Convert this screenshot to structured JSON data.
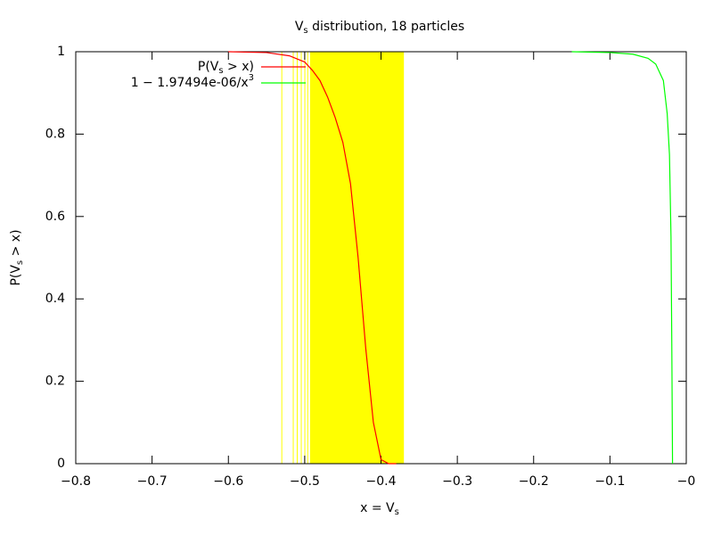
{
  "chart_data": {
    "type": "line",
    "title": [
      "V",
      "s",
      " distribution, 18 particles"
    ],
    "xlabel": [
      "x = V",
      "s"
    ],
    "ylabel": [
      "P(V",
      "s",
      " > x)"
    ],
    "xlim": [
      -0.8,
      0
    ],
    "ylim": [
      0,
      1
    ],
    "xticks": [
      {
        "value": -0.8,
        "label": "−0.8"
      },
      {
        "value": -0.7,
        "label": "−0.7"
      },
      {
        "value": -0.6,
        "label": "−0.6"
      },
      {
        "value": -0.5,
        "label": "−0.5"
      },
      {
        "value": -0.4,
        "label": "−0.4"
      },
      {
        "value": -0.3,
        "label": "−0.3"
      },
      {
        "value": -0.2,
        "label": "−0.2"
      },
      {
        "value": -0.1,
        "label": "−0.1"
      },
      {
        "value": 0,
        "label": "−0"
      }
    ],
    "yticks": [
      0,
      0.2,
      0.4,
      0.6,
      0.8,
      1
    ],
    "particles": {
      "color": "#ffff00",
      "x": [
        -0.53,
        -0.515,
        -0.5098,
        -0.5045,
        -0.4998,
        -0.496
      ],
      "band": [
        -0.493,
        -0.37
      ]
    },
    "series": [
      {
        "name": [
          "P(V",
          "s",
          " > x)"
        ],
        "color": "#ff0000",
        "x": [
          -0.6,
          -0.55,
          -0.52,
          -0.5,
          -0.49,
          -0.48,
          -0.47,
          -0.46,
          -0.45,
          -0.44,
          -0.43,
          -0.42,
          -0.41,
          -0.4,
          -0.39,
          -0.38
        ],
        "values": [
          1,
          0.998,
          0.99,
          0.975,
          0.955,
          0.93,
          0.89,
          0.84,
          0.78,
          0.68,
          0.5,
          0.28,
          0.1,
          0.01,
          0,
          0
        ]
      },
      {
        "name": [
          "1 − 1.97494e-06/x",
          "3"
        ],
        "color": "#00ff00",
        "x": [
          -0.15,
          -0.1,
          -0.07,
          -0.05,
          -0.04,
          -0.03,
          -0.025,
          -0.022,
          -0.02,
          -0.019,
          -0.018
        ],
        "values": [
          1,
          0.998,
          0.994,
          0.984,
          0.97,
          0.93,
          0.85,
          0.75,
          0.55,
          0.3,
          0
        ]
      }
    ]
  }
}
